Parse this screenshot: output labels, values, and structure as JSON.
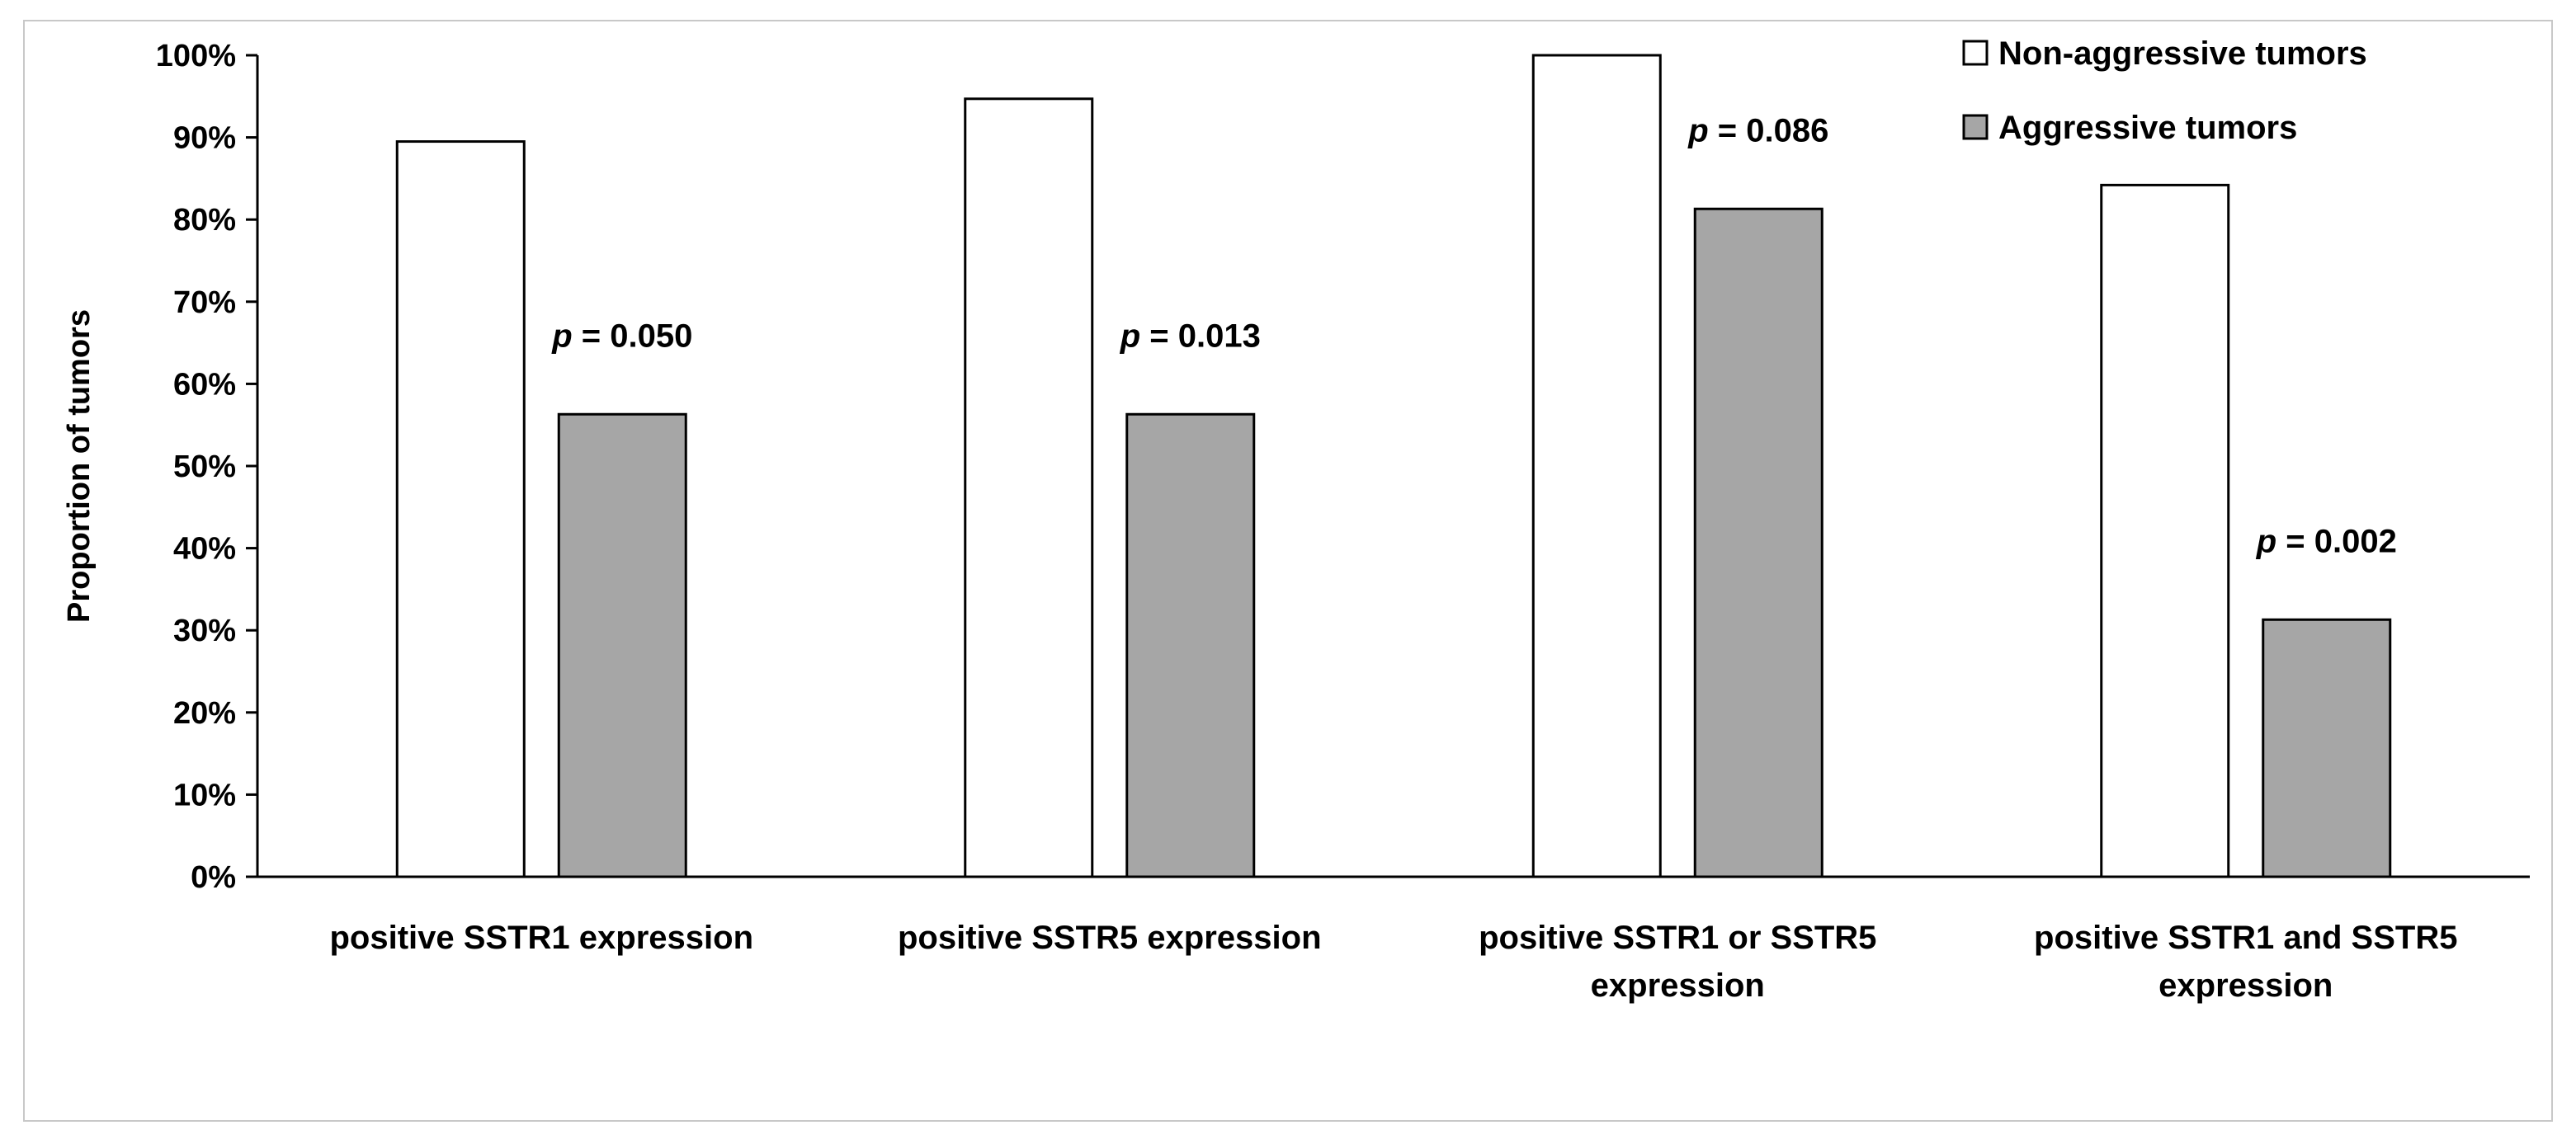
{
  "chart_data": {
    "type": "bar",
    "title": "",
    "xlabel": "",
    "ylabel": "Proportion of tumors",
    "ylim": [
      0,
      100
    ],
    "yticks": [
      "0%",
      "10%",
      "20%",
      "30%",
      "40%",
      "50%",
      "60%",
      "70%",
      "80%",
      "90%",
      "100%"
    ],
    "grid": false,
    "legend_position": "top-right",
    "categories": [
      [
        "positive SSTR1 expression"
      ],
      [
        "positive SSTR5 expression"
      ],
      [
        "positive SSTR1 or SSTR5",
        "expression"
      ],
      [
        "positive SSTR1 and SSTR5",
        "expression"
      ]
    ],
    "series": [
      {
        "name": "Non-aggressive tumors",
        "color": "#ffffff",
        "values": [
          89.5,
          94.7,
          100,
          84.2
        ]
      },
      {
        "name": "Aggressive tumors",
        "color": "#a6a6a6",
        "values": [
          56.3,
          56.3,
          81.3,
          31.3
        ]
      }
    ],
    "annotations": [
      {
        "label": "p",
        "text": " = 0.050"
      },
      {
        "label": "p",
        "text": " = 0.013"
      },
      {
        "label": "p",
        "text": " = 0.086"
      },
      {
        "label": "p",
        "text": " = 0.002"
      }
    ]
  }
}
